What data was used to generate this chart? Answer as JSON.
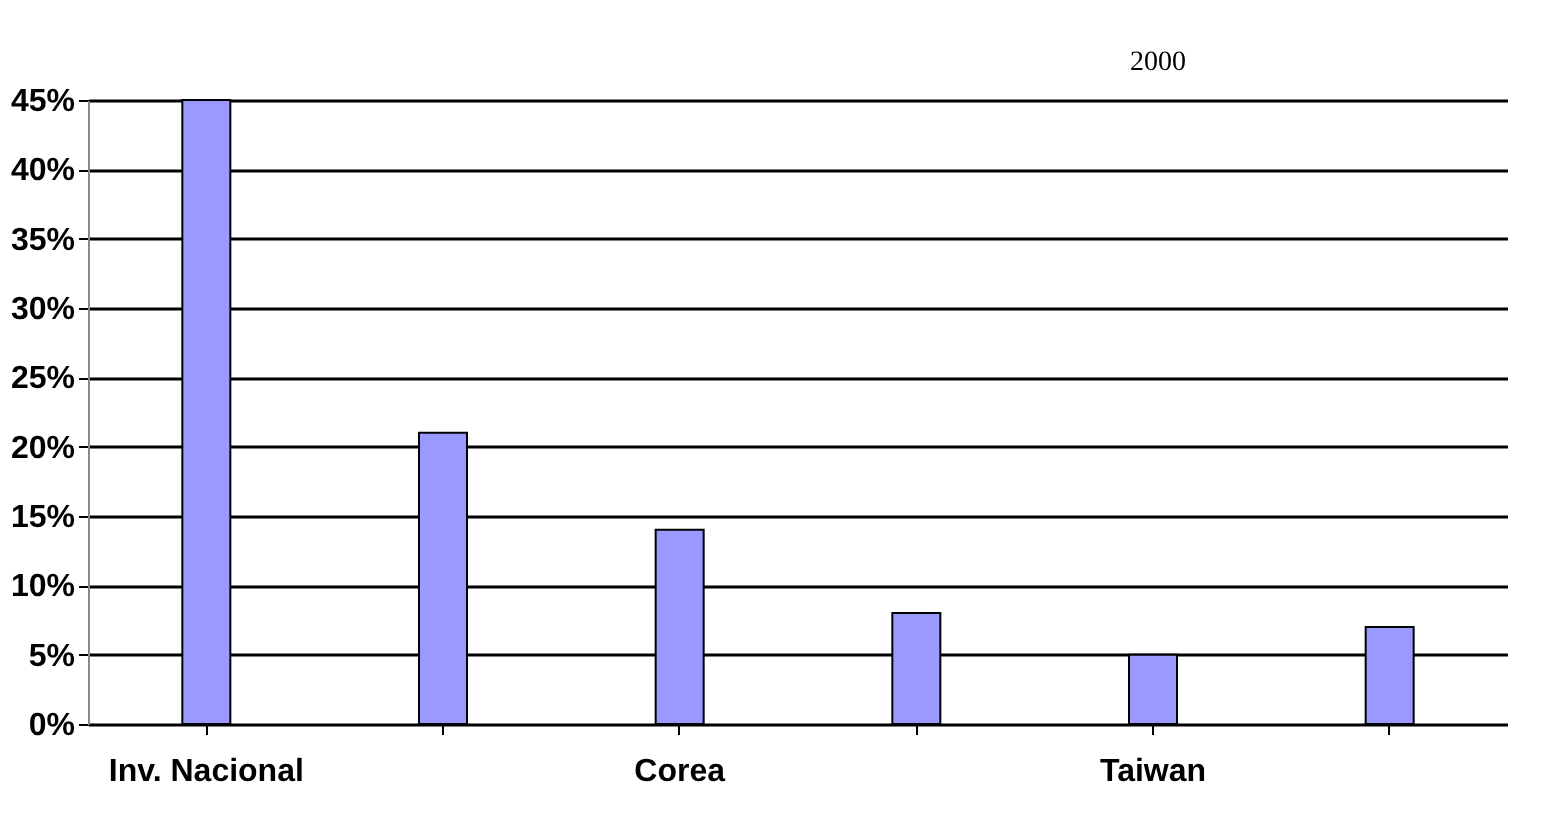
{
  "chart_data": {
    "type": "bar",
    "title": "2000",
    "categories": [
      "Inv. Nacional",
      null,
      "Corea",
      null,
      "Taiwan",
      null
    ],
    "values": [
      45,
      21,
      14,
      8,
      5,
      7
    ],
    "color": "#9999ff",
    "ylim": [
      0,
      45
    ],
    "yticks": [
      {
        "value": 0,
        "label": "0%"
      },
      {
        "value": 5,
        "label": "5%"
      },
      {
        "value": 10,
        "label": "10%"
      },
      {
        "value": 15,
        "label": "15%"
      },
      {
        "value": 20,
        "label": "20%"
      },
      {
        "value": 25,
        "label": "25%"
      },
      {
        "value": 30,
        "label": "30%"
      },
      {
        "value": 35,
        "label": "35%"
      },
      {
        "value": 40,
        "label": "40%"
      },
      {
        "value": 45,
        "label": "45%"
      }
    ],
    "grid": "y"
  }
}
